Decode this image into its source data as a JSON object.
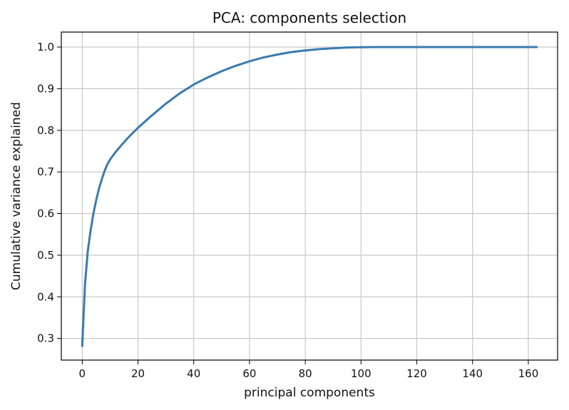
{
  "chart_data": {
    "type": "line",
    "title": "PCA: components selection",
    "xlabel": "principal components",
    "ylabel": "Cumulative variance explained",
    "xlim": [
      -7.5,
      170.5
    ],
    "ylim": [
      0.248,
      1.036
    ],
    "xticks": [
      0,
      20,
      40,
      60,
      80,
      100,
      120,
      140,
      160
    ],
    "yticks": [
      0.3,
      0.4,
      0.5,
      0.6,
      0.7,
      0.8,
      0.9,
      1.0
    ],
    "xtick_labels": [
      "0",
      "20",
      "40",
      "60",
      "80",
      "100",
      "120",
      "140",
      "160"
    ],
    "ytick_labels": [
      "0.3",
      "0.4",
      "0.5",
      "0.6",
      "0.7",
      "0.8",
      "0.9",
      "1.0"
    ],
    "grid": true,
    "line_color": "#3a7bb0",
    "series": [
      {
        "x": [
          0,
          1,
          2,
          3,
          4,
          5,
          6,
          7,
          8,
          9,
          10,
          12,
          14,
          16,
          18,
          20,
          25,
          30,
          35,
          40,
          45,
          50,
          55,
          60,
          65,
          70,
          75,
          80,
          85,
          90,
          95,
          100,
          105,
          110,
          120,
          130,
          140,
          150,
          160,
          163
        ],
        "y": [
          0.282,
          0.43,
          0.51,
          0.56,
          0.6,
          0.632,
          0.66,
          0.682,
          0.702,
          0.718,
          0.73,
          0.748,
          0.764,
          0.779,
          0.793,
          0.806,
          0.836,
          0.864,
          0.889,
          0.91,
          0.927,
          0.942,
          0.955,
          0.966,
          0.975,
          0.982,
          0.988,
          0.992,
          0.995,
          0.997,
          0.999,
          0.9995,
          1.0,
          1.0,
          1.0,
          1.0,
          1.0,
          1.0,
          1.0,
          1.0
        ]
      }
    ]
  }
}
